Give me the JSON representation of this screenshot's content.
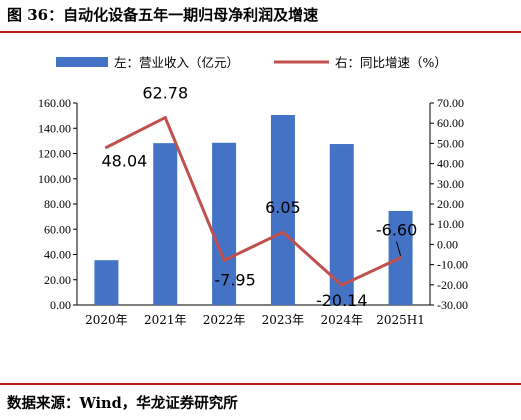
{
  "header": {
    "title": "图 36：自动化设备五年一期归母净利润及增速"
  },
  "footer": {
    "source": "数据来源：Wind，华龙证券研究所"
  },
  "chart_data": {
    "type": "bar+line",
    "categories": [
      "2020年",
      "2021年",
      "2022年",
      "2023年",
      "2024年",
      "2025H1"
    ],
    "series": [
      {
        "name": "左：营业收入（亿元）",
        "type": "bar",
        "axis": "left",
        "color": "#4472c4",
        "values": [
          35.5,
          128.2,
          128.5,
          150.5,
          127.5,
          74.5
        ]
      },
      {
        "name": "右：同比增速（%）",
        "type": "line",
        "axis": "right",
        "color": "#c0504d",
        "values": [
          48.04,
          62.78,
          -7.95,
          6.05,
          -20.14,
          -6.6
        ]
      }
    ],
    "line_labels": [
      "48.04",
      "62.78",
      "-7.95",
      "6.05",
      "-20.14",
      "-6.60"
    ],
    "y_left": {
      "min": 0,
      "max": 160,
      "step": 20,
      "ticks": [
        "0.00",
        "20.00",
        "40.00",
        "60.00",
        "80.00",
        "100.00",
        "120.00",
        "140.00",
        "160.00"
      ]
    },
    "y_right": {
      "min": -30,
      "max": 70,
      "step": 10,
      "ticks": [
        "-30.00",
        "-20.00",
        "-10.00",
        "0.00",
        "10.00",
        "20.00",
        "30.00",
        "40.00",
        "50.00",
        "60.00",
        "70.00"
      ]
    },
    "legend_position": "top",
    "grid": false
  }
}
